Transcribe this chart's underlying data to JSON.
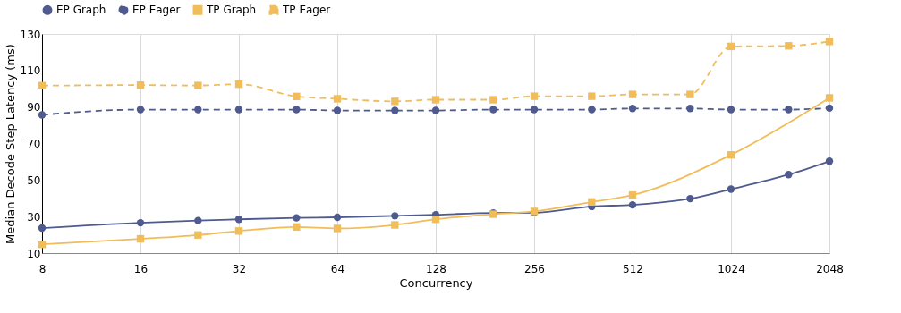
{
  "chart_data": {
    "type": "line",
    "x": [
      8,
      16,
      24,
      32,
      48,
      64,
      96,
      128,
      192,
      256,
      384,
      512,
      768,
      1024,
      1536,
      2048
    ],
    "series": [
      {
        "name": "EP Graph",
        "color": "#4f5a8e",
        "marker": "circle",
        "line_style": "solid",
        "values": [
          23.7,
          26.6,
          27.8,
          28.5,
          29.3,
          29.6,
          30.4,
          31,
          32,
          32.1,
          35.5,
          36.4,
          39.8,
          45,
          53,
          60.3
        ]
      },
      {
        "name": "EP Eager",
        "color": "#4f5a8e",
        "marker": "circle",
        "line_style": "dashed",
        "values": [
          85.7,
          88.6,
          88.6,
          88.6,
          88.6,
          88.1,
          88.1,
          88.1,
          88.6,
          88.6,
          88.6,
          89.2,
          89.2,
          88.6,
          88.6,
          89.4
        ]
      },
      {
        "name": "TP Graph",
        "color": "#f0bd5a",
        "marker": "square",
        "line_style": "solid",
        "x": [
          8,
          16,
          24,
          32,
          48,
          64,
          96,
          128,
          192,
          256,
          384,
          512,
          1024,
          2048
        ],
        "values": [
          14.8,
          17.8,
          19.9,
          22.1,
          24.3,
          23.5,
          25.4,
          28.5,
          31.3,
          32.8,
          38,
          41.8,
          63.8,
          95
        ]
      },
      {
        "name": "TP Eager",
        "color": "#f0bd5a",
        "marker": "square",
        "line_style": "dashed",
        "values": [
          101.7,
          102,
          101.8,
          102.5,
          95.8,
          94.5,
          93.1,
          94,
          94,
          95.9,
          95.9,
          96.9,
          96.9,
          123.2,
          123.5,
          125.9
        ]
      }
    ],
    "xlabel": "Concurrency",
    "ylabel": "Median Decode Step Latency (ms)",
    "log": "x",
    "xlim": [
      8,
      2048
    ],
    "xticks": [
      8,
      16,
      32,
      64,
      128,
      256,
      512,
      1024,
      2048
    ],
    "ylim": [
      10,
      130
    ],
    "yticks": [
      10,
      30,
      50,
      70,
      90,
      110,
      130
    ],
    "grid": "x",
    "legend": "top"
  }
}
